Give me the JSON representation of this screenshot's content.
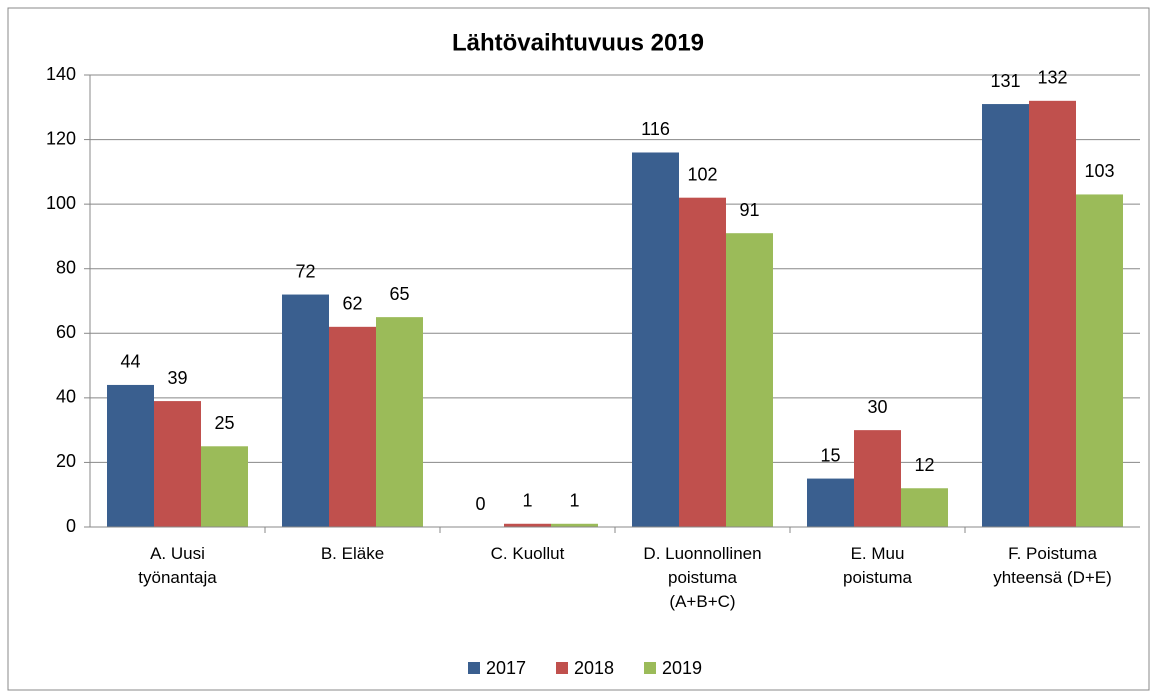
{
  "chart_data": {
    "type": "bar",
    "title": "Lähtövaihtuvuus 2019",
    "categories": [
      "A. Uusi\ntyönantaja",
      "B. Eläke",
      "C. Kuollut",
      "D. Luonnollinen\npoistuma\n(A+B+C)",
      "E. Muu\npoistuma",
      "F. Poistuma\nyhteensä (D+E)"
    ],
    "series": [
      {
        "name": "2017",
        "color": "#3a5f8f",
        "values": [
          44,
          72,
          0,
          116,
          15,
          131
        ]
      },
      {
        "name": "2018",
        "color": "#c0504d",
        "values": [
          39,
          62,
          1,
          102,
          30,
          132
        ]
      },
      {
        "name": "2019",
        "color": "#9bbb59",
        "values": [
          25,
          65,
          1,
          91,
          12,
          103
        ]
      }
    ],
    "ylim": [
      0,
      140
    ],
    "yticks": [
      0,
      20,
      40,
      60,
      80,
      100,
      120,
      140
    ],
    "grid": true,
    "legend": "bottom"
  }
}
